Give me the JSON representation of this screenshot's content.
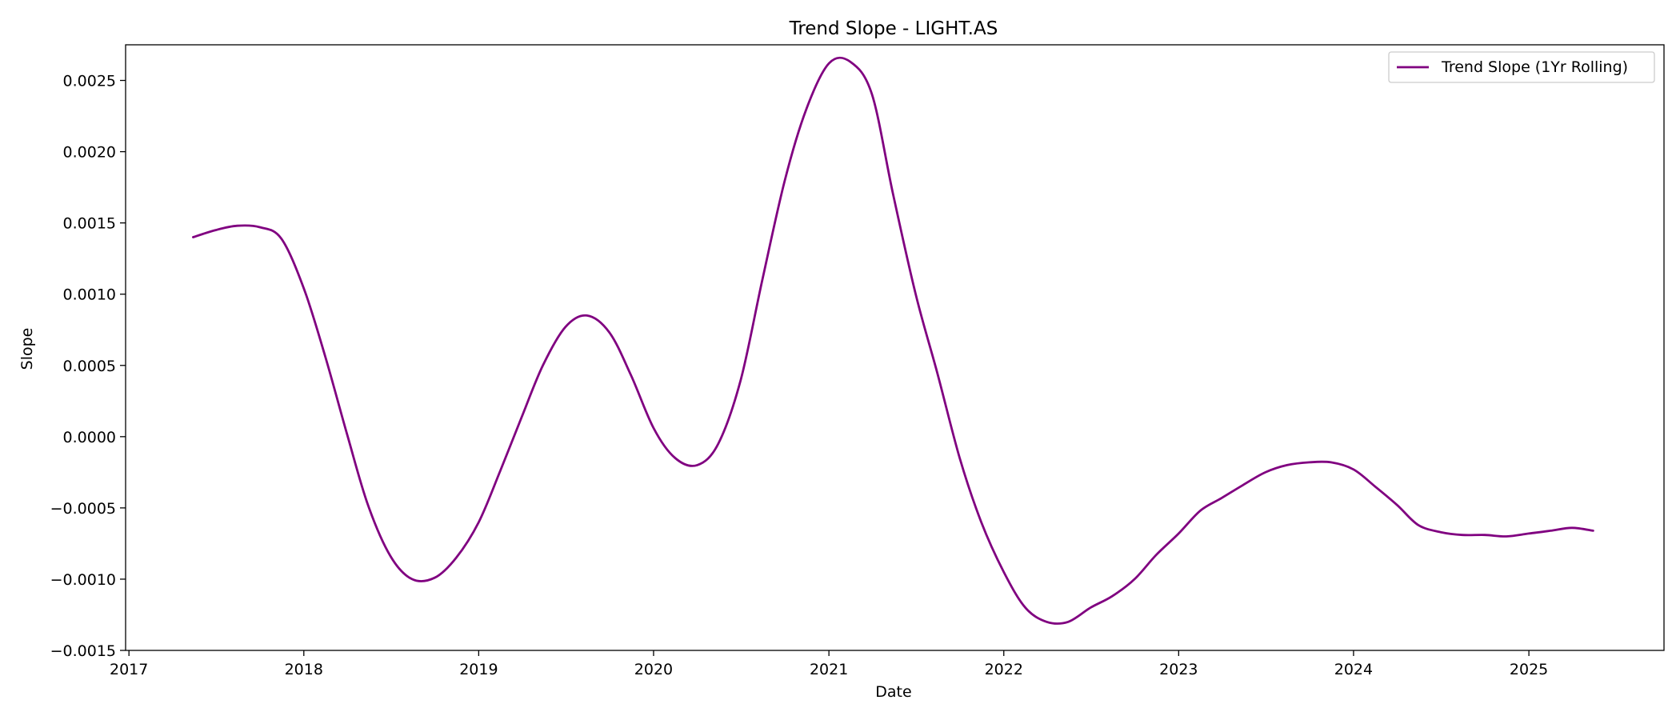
{
  "chart_data": {
    "type": "line",
    "title": "Trend Slope - LIGHT.AS",
    "xlabel": "Date",
    "ylabel": "Slope",
    "x_ticks": [
      "2017",
      "2018",
      "2019",
      "2020",
      "2021",
      "2022",
      "2023",
      "2024",
      "2025"
    ],
    "y_ticks": [
      "−0.0015",
      "−0.0010",
      "−0.0005",
      "0.0000",
      "0.0005",
      "0.0010",
      "0.0015",
      "0.0020",
      "0.0025"
    ],
    "xlim": [
      "2016-12-25",
      "2025-10-10"
    ],
    "ylim": [
      -0.0015,
      0.00275
    ],
    "grid": false,
    "legend_position": "top-right",
    "series": [
      {
        "name": "Trend Slope (1Yr Rolling)",
        "color": "#800080",
        "x": [
          "2017-05-15",
          "2017-07-01",
          "2017-08-15",
          "2017-10-01",
          "2017-11-15",
          "2018-01-01",
          "2018-02-15",
          "2018-04-01",
          "2018-05-15",
          "2018-07-01",
          "2018-08-15",
          "2018-10-01",
          "2018-11-15",
          "2019-01-01",
          "2019-02-15",
          "2019-04-01",
          "2019-05-15",
          "2019-07-01",
          "2019-08-15",
          "2019-10-01",
          "2019-11-15",
          "2020-01-01",
          "2020-02-15",
          "2020-04-01",
          "2020-05-15",
          "2020-07-01",
          "2020-08-15",
          "2020-10-01",
          "2020-11-15",
          "2021-01-01",
          "2021-02-15",
          "2021-04-01",
          "2021-05-15",
          "2021-07-01",
          "2021-08-15",
          "2021-10-01",
          "2021-11-15",
          "2022-01-01",
          "2022-02-15",
          "2022-04-01",
          "2022-05-15",
          "2022-07-01",
          "2022-08-15",
          "2022-10-01",
          "2022-11-15",
          "2023-01-01",
          "2023-02-15",
          "2023-04-01",
          "2023-05-15",
          "2023-07-01",
          "2023-08-15",
          "2023-10-01",
          "2023-11-15",
          "2024-01-01",
          "2024-02-15",
          "2024-04-01",
          "2024-05-15",
          "2024-07-01",
          "2024-08-15",
          "2024-10-01",
          "2024-11-15",
          "2025-01-01",
          "2025-02-15",
          "2025-04-01",
          "2025-05-15"
        ],
        "values": [
          0.0014,
          0.00145,
          0.00148,
          0.00147,
          0.00139,
          0.00104,
          0.00056,
          2e-05,
          -0.00048,
          -0.00084,
          -0.001,
          -0.00099,
          -0.00085,
          -0.0006,
          -0.00024,
          0.00014,
          0.0005,
          0.00077,
          0.00085,
          0.00073,
          0.00043,
          6e-05,
          -0.00015,
          -0.0002,
          -5e-05,
          0.0004,
          0.0011,
          0.0018,
          0.0023,
          0.00262,
          0.00263,
          0.0024,
          0.0017,
          0.001,
          0.00045,
          -0.00015,
          -0.0006,
          -0.00095,
          -0.0012,
          -0.0013,
          -0.0013,
          -0.0012,
          -0.00112,
          -0.001,
          -0.00083,
          -0.00068,
          -0.00052,
          -0.00043,
          -0.00034,
          -0.00025,
          -0.0002,
          -0.00018,
          -0.00018,
          -0.00023,
          -0.00035,
          -0.00048,
          -0.00062,
          -0.00067,
          -0.00069,
          -0.00069,
          -0.0007,
          -0.00068,
          -0.00066,
          -0.00064,
          -0.00066
        ]
      }
    ]
  }
}
